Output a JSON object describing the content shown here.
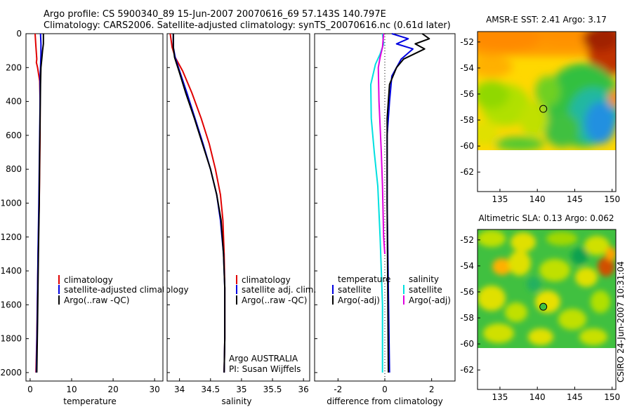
{
  "header": {
    "line1": "Argo profile: CS 5900340_89 15-Jun-2007 20070616_69 57.143S 140.797E",
    "line2": "Climatology: CARS2006. Satellite-adjusted climatology: synTS_20070616.nc (0.61d later)"
  },
  "side_credit": "CSIRO 24-Jun-2007 10:31:04",
  "colors": {
    "climatology": "#e00000",
    "satellite": "#0000e0",
    "argo": "#000000",
    "sal_satellite": "#00e0e0",
    "sal_argo": "#e000e0"
  },
  "chart_data": [
    {
      "type": "line",
      "xlabel": "temperature",
      "xlim": [
        -1,
        32
      ],
      "ylim": [
        2050,
        0
      ],
      "xticks": [
        0,
        10,
        20,
        30
      ],
      "yticks": [
        0,
        200,
        400,
        600,
        800,
        1000,
        1200,
        1400,
        1600,
        1800,
        2000
      ],
      "legend": [
        "climatology",
        "satellite-adjusted climatology",
        "Argo(..raw -QC)"
      ],
      "legend_position": "lower-center",
      "series": [
        {
          "name": "climatology",
          "color": "#e00000",
          "x": [
            1.2,
            1.4,
            1.6,
            1.5,
            1.8,
            2.3,
            2.4,
            2.4,
            2.3,
            2.2,
            2.0,
            1.8,
            1.6,
            1.4
          ],
          "y": [
            0,
            80,
            150,
            170,
            200,
            280,
            400,
            600,
            800,
            1000,
            1200,
            1500,
            1800,
            2000
          ]
        },
        {
          "name": "satellite-adjusted climatology",
          "color": "#0000e0",
          "x": [
            2.5,
            2.6,
            2.6,
            2.5,
            2.4,
            2.4,
            2.3,
            2.2,
            2.1,
            1.9,
            1.7,
            1.5
          ],
          "y": [
            0,
            60,
            120,
            200,
            250,
            400,
            600,
            800,
            1000,
            1300,
            1700,
            2000
          ]
        },
        {
          "name": "Argo(..raw -QC)",
          "color": "#000000",
          "x": [
            3.2,
            3.2,
            3.0,
            2.8,
            2.6,
            2.5,
            2.4,
            2.3,
            2.2,
            2.0,
            1.8,
            1.6
          ],
          "y": [
            0,
            60,
            100,
            150,
            200,
            300,
            500,
            700,
            1000,
            1300,
            1700,
            2000
          ]
        }
      ]
    },
    {
      "type": "line",
      "xlabel": "salinity",
      "xlim": [
        33.8,
        36.1
      ],
      "ylim": [
        2050,
        0
      ],
      "xticks": [
        34,
        34.5,
        35,
        35.5,
        36
      ],
      "yticks": [
        0,
        200,
        400,
        600,
        800,
        1000,
        1200,
        1400,
        1600,
        1800,
        2000
      ],
      "legend": [
        "climatology",
        "satellite adj. clim.",
        "Argo(..raw -QC)"
      ],
      "legend_position": "lower-center",
      "annotations": [
        "Argo AUSTRALIA",
        "PI: Susan Wijffels"
      ],
      "series": [
        {
          "name": "climatology",
          "color": "#e00000",
          "x": [
            33.85,
            33.88,
            33.93,
            34.05,
            34.2,
            34.35,
            34.48,
            34.58,
            34.66,
            34.7,
            34.72,
            34.73,
            34.73,
            34.72
          ],
          "y": [
            0,
            80,
            140,
            220,
            350,
            500,
            650,
            800,
            950,
            1100,
            1300,
            1500,
            1800,
            2000
          ]
        },
        {
          "name": "satellite adj. clim.",
          "color": "#0000e0",
          "x": [
            33.9,
            33.9,
            33.93,
            34.0,
            34.12,
            34.25,
            34.38,
            34.5,
            34.6,
            34.66,
            34.71,
            34.73,
            34.73,
            34.72
          ],
          "y": [
            0,
            80,
            140,
            220,
            350,
            500,
            650,
            800,
            950,
            1100,
            1300,
            1500,
            1800,
            2000
          ]
        },
        {
          "name": "Argo(..raw -QC)",
          "color": "#000000",
          "x": [
            33.9,
            33.9,
            33.92,
            33.99,
            34.1,
            34.24,
            34.37,
            34.5,
            34.6,
            34.67,
            34.71,
            34.73,
            34.73,
            34.72
          ],
          "y": [
            0,
            80,
            140,
            220,
            350,
            500,
            650,
            800,
            950,
            1100,
            1300,
            1500,
            1800,
            2000
          ]
        }
      ]
    },
    {
      "type": "line",
      "xlabel": "difference from climatology",
      "xlim": [
        -3,
        3
      ],
      "ylim": [
        2050,
        0
      ],
      "xticks": [
        -2,
        0,
        2
      ],
      "yticks": [
        0,
        200,
        400,
        600,
        800,
        1000,
        1200,
        1400,
        1600,
        1800,
        2000
      ],
      "legend": [
        "temperature",
        "satellite",
        "Argo(-adj)",
        "salinity",
        "satellite",
        "Argo(-adj)"
      ],
      "legend_position": "lower-center",
      "series": [
        {
          "name": "temperature satellite",
          "color": "#0000e0",
          "x": [
            0.3,
            1.0,
            0.5,
            1.2,
            0.7,
            0.3,
            0.2,
            0.1,
            0.1,
            0.15,
            0.2
          ],
          "y": [
            0,
            30,
            60,
            90,
            150,
            250,
            400,
            600,
            1000,
            1500,
            2000
          ]
        },
        {
          "name": "temperature Argo(-adj)",
          "color": "#000000",
          "x": [
            1.6,
            1.9,
            1.3,
            1.7,
            0.8,
            0.5,
            0.2,
            0.1,
            0.1,
            0.15
          ],
          "y": [
            0,
            30,
            60,
            90,
            150,
            200,
            300,
            500,
            1000,
            2000
          ]
        },
        {
          "name": "salinity satellite",
          "color": "#00e0e0",
          "x": [
            -0.1,
            -0.05,
            -0.2,
            -0.4,
            -0.6,
            -0.58,
            -0.45,
            -0.3,
            -0.2,
            -0.1,
            -0.1
          ],
          "y": [
            0,
            60,
            120,
            180,
            300,
            500,
            700,
            900,
            1200,
            1600,
            2000
          ]
        },
        {
          "name": "salinity Argo(-adj)",
          "color": "#e000e0",
          "x": [
            -0.05,
            -0.1,
            -0.2,
            -0.28,
            -0.25,
            -0.15,
            -0.1,
            -0.05,
            0.0
          ],
          "y": [
            0,
            80,
            140,
            200,
            400,
            700,
            900,
            1200,
            1300
          ]
        }
      ]
    },
    {
      "type": "heatmap",
      "title": "AMSR-E SST: 2.41 Argo: 3.17",
      "xlim": [
        132,
        150.5
      ],
      "ylim": [
        -63.5,
        -51.2
      ],
      "xticks": [
        135,
        140,
        145,
        150
      ],
      "yticks": [
        -52,
        -54,
        -56,
        -58,
        -60,
        -62
      ],
      "data_extent_lat": [
        -60,
        -51.2
      ],
      "marker": {
        "lon": 140.797,
        "lat": -57.143
      }
    },
    {
      "type": "heatmap",
      "title": "Altimetric SLA: 0.13 Argo: 0.062",
      "xlim": [
        132,
        150.5
      ],
      "ylim": [
        -63.5,
        -51.2
      ],
      "xticks": [
        135,
        140,
        145,
        150
      ],
      "yticks": [
        -52,
        -54,
        -56,
        -58,
        -60,
        -62
      ],
      "data_extent_lat": [
        -60,
        -51.2
      ],
      "marker": {
        "lon": 140.797,
        "lat": -57.143
      }
    }
  ]
}
